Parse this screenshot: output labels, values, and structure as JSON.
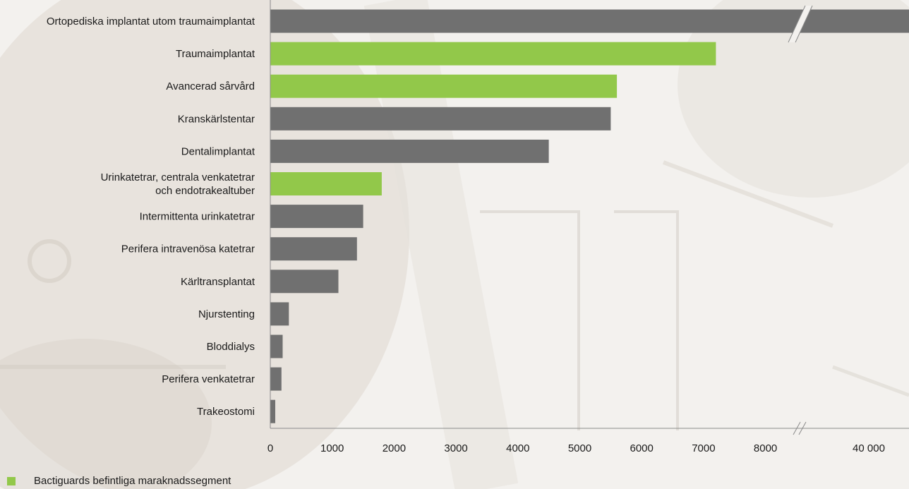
{
  "chart_data": {
    "type": "bar",
    "orientation": "horizontal",
    "categories": [
      "Ortopediska implantat utom traumaimplantat",
      "Traumaimplantat",
      "Avancerad sårvård",
      "Kranskärlstentar",
      "Dentalimplantat",
      "Urinkatetrar, centrala venkatetrar\noch endotrakealtuber",
      "Intermittenta urinkatetrar",
      "Perifera intravenösa katetrar",
      "Kärltransplantat",
      "Njurstenting",
      "Bloddialys",
      "Perifera venkatetrar",
      "Trakeostomi"
    ],
    "values": [
      40000,
      7200,
      5600,
      5500,
      4500,
      1800,
      1500,
      1400,
      1100,
      300,
      200,
      180,
      80
    ],
    "highlighted": [
      false,
      true,
      true,
      false,
      false,
      true,
      false,
      false,
      false,
      false,
      false,
      false,
      false
    ],
    "x_ticks": [
      "0",
      "1000",
      "2000",
      "3000",
      "4000",
      "5000",
      "6000",
      "7000",
      "8000",
      "40 000"
    ],
    "xlim": [
      0,
      9000
    ],
    "axis_break": true,
    "grid": false,
    "legend": {
      "placement": "bottom-left",
      "entries": [
        {
          "label": "Bactiguards befintliga maraknadssegment",
          "color": "#92c84a"
        }
      ]
    },
    "colors": {
      "default": "#707070",
      "highlight": "#92c84a",
      "axis": "#8a8a8a"
    }
  }
}
